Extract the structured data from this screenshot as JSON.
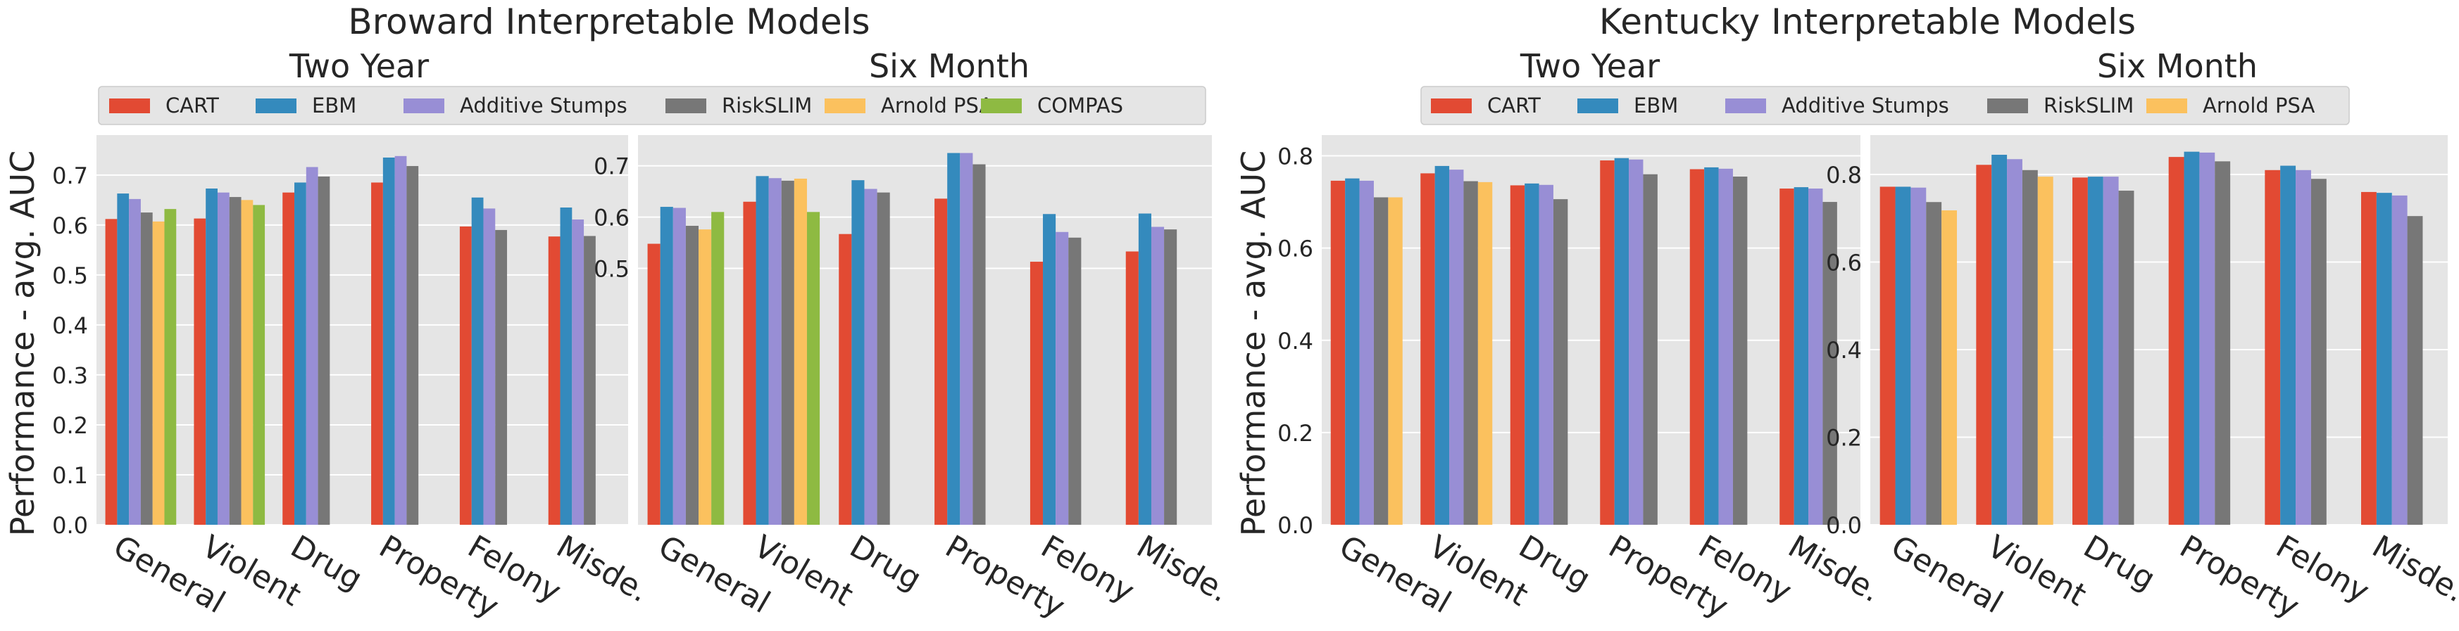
{
  "colors": {
    "CART": "#E24A33",
    "EBM": "#348ABD",
    "Additive Stumps": "#988ED5",
    "RiskSLIM": "#777777",
    "Arnold PSA": "#FBC15E",
    "COMPAS": "#8EBA42",
    "panel_bg": "#E5E5E5",
    "grid": "#FFFFFF"
  },
  "figure_titles": {
    "broward": "Broward Interpretable Models",
    "kentucky": "Kentucky Interpretable Models"
  },
  "legends": {
    "broward": [
      "CART",
      "EBM",
      "Additive Stumps",
      "RiskSLIM",
      "Arnold PSA",
      "COMPAS"
    ],
    "kentucky": [
      "CART",
      "EBM",
      "Additive Stumps",
      "RiskSLIM",
      "Arnold PSA"
    ]
  },
  "chart_data": [
    {
      "type": "bar",
      "group": "broward",
      "title": "Two Year",
      "ylabel": "Performance - avg. AUC",
      "xlabel": "",
      "categories": [
        "General",
        "Violent",
        "Drug",
        "Property",
        "Felony",
        "Misde."
      ],
      "ylim": [
        0,
        0.78
      ],
      "yticks": [
        0.0,
        0.1,
        0.2,
        0.3,
        0.4,
        0.5,
        0.6,
        0.7
      ],
      "ytick_labels": [
        "0.0",
        "0.1",
        "0.2",
        "0.3",
        "0.4",
        "0.5",
        "0.6",
        "0.7"
      ],
      "series": [
        {
          "name": "CART",
          "values": [
            0.612,
            0.613,
            0.665,
            0.685,
            0.597,
            0.577
          ]
        },
        {
          "name": "EBM",
          "values": [
            0.663,
            0.673,
            0.685,
            0.735,
            0.655,
            0.635
          ]
        },
        {
          "name": "Additive Stumps",
          "values": [
            0.652,
            0.665,
            0.716,
            0.738,
            0.633,
            0.611
          ]
        },
        {
          "name": "RiskSLIM",
          "values": [
            0.625,
            0.656,
            0.697,
            0.718,
            0.59,
            0.578
          ]
        },
        {
          "name": "Arnold PSA",
          "values": [
            0.607,
            0.65,
            null,
            null,
            null,
            null
          ]
        },
        {
          "name": "COMPAS",
          "values": [
            0.632,
            0.64,
            null,
            null,
            null,
            null
          ]
        }
      ]
    },
    {
      "type": "bar",
      "group": "broward",
      "title": "Six Month",
      "ylabel": "",
      "xlabel": "",
      "categories": [
        "General",
        "Violent",
        "Drug",
        "Property",
        "Felony",
        "Misde."
      ],
      "ylim": [
        0,
        0.76
      ],
      "yticks": [
        0.5,
        0.6,
        0.7
      ],
      "ytick_labels": [
        "0.5",
        "0.6",
        "0.7"
      ],
      "series": [
        {
          "name": "CART",
          "values": [
            0.548,
            0.63,
            0.567,
            0.636,
            0.513,
            0.533
          ]
        },
        {
          "name": "EBM",
          "values": [
            0.62,
            0.68,
            0.672,
            0.725,
            0.606,
            0.607
          ]
        },
        {
          "name": "Additive Stumps",
          "values": [
            0.618,
            0.676,
            0.655,
            0.725,
            0.571,
            0.581
          ]
        },
        {
          "name": "RiskSLIM",
          "values": [
            0.583,
            0.671,
            0.648,
            0.703,
            0.56,
            0.576
          ]
        },
        {
          "name": "Arnold PSA",
          "values": [
            0.576,
            0.675,
            null,
            null,
            null,
            null
          ]
        },
        {
          "name": "COMPAS",
          "values": [
            0.61,
            0.61,
            null,
            null,
            null,
            null
          ]
        }
      ]
    },
    {
      "type": "bar",
      "group": "kentucky",
      "title": "Two Year",
      "ylabel": "Performance - avg. AUC",
      "xlabel": "",
      "categories": [
        "General",
        "Violent",
        "Drug",
        "Property",
        "Felony",
        "Misde."
      ],
      "ylim": [
        0,
        0.845
      ],
      "yticks": [
        0.0,
        0.2,
        0.4,
        0.6,
        0.8
      ],
      "ytick_labels": [
        "0.0",
        "0.2",
        "0.4",
        "0.6",
        "0.8"
      ],
      "series": [
        {
          "name": "CART",
          "values": [
            0.746,
            0.762,
            0.736,
            0.79,
            0.771,
            0.729
          ]
        },
        {
          "name": "EBM",
          "values": [
            0.751,
            0.778,
            0.74,
            0.795,
            0.775,
            0.732
          ]
        },
        {
          "name": "Additive Stumps",
          "values": [
            0.746,
            0.77,
            0.737,
            0.792,
            0.772,
            0.729
          ]
        },
        {
          "name": "RiskSLIM",
          "values": [
            0.71,
            0.745,
            0.706,
            0.76,
            0.755,
            0.7
          ]
        },
        {
          "name": "Arnold PSA",
          "values": [
            0.71,
            0.743,
            null,
            null,
            null,
            null
          ]
        }
      ]
    },
    {
      "type": "bar",
      "group": "kentucky",
      "title": "Six Month",
      "ylabel": "",
      "xlabel": "",
      "categories": [
        "General",
        "Violent",
        "Drug",
        "Property",
        "Felony",
        "Misde."
      ],
      "ylim": [
        0,
        0.89
      ],
      "yticks": [
        0.0,
        0.2,
        0.4,
        0.6,
        0.8
      ],
      "ytick_labels": [
        "0.0",
        "0.2",
        "0.4",
        "0.6",
        "0.8"
      ],
      "series": [
        {
          "name": "CART",
          "values": [
            0.772,
            0.822,
            0.793,
            0.84,
            0.81,
            0.76
          ]
        },
        {
          "name": "EBM",
          "values": [
            0.772,
            0.845,
            0.795,
            0.852,
            0.82,
            0.758
          ]
        },
        {
          "name": "Additive Stumps",
          "values": [
            0.77,
            0.835,
            0.795,
            0.85,
            0.81,
            0.752
          ]
        },
        {
          "name": "RiskSLIM",
          "values": [
            0.737,
            0.81,
            0.763,
            0.83,
            0.79,
            0.705
          ]
        },
        {
          "name": "Arnold PSA",
          "values": [
            0.718,
            0.795,
            null,
            null,
            null,
            null
          ]
        }
      ]
    }
  ]
}
